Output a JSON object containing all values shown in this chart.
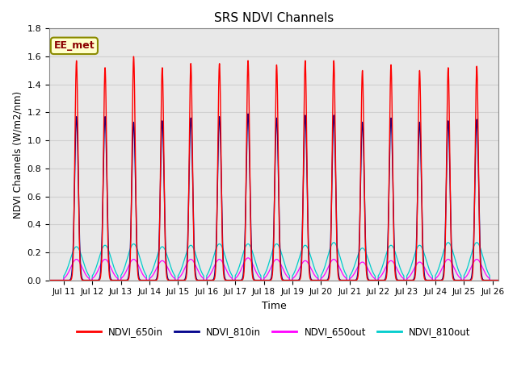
{
  "title": "SRS NDVI Channels",
  "xlabel": "Time",
  "ylabel": "NDVI Channels (W/m2/nm)",
  "ylim": [
    0,
    1.8
  ],
  "xlim_days": [
    10.5,
    26.2
  ],
  "annotation": "EE_met",
  "grid_color": "#d0d0d0",
  "bg_color": "#e8e8e8",
  "xtick_days": [
    11,
    12,
    13,
    14,
    15,
    16,
    17,
    18,
    19,
    20,
    21,
    22,
    23,
    24,
    25,
    26
  ],
  "xtick_labels": [
    "Jul 11",
    "Jul 12",
    "Jul 13",
    "Jul 14",
    "Jul 15",
    "Jul 16",
    "Jul 17",
    "Jul 18",
    "Jul 19",
    "Jul 20",
    "Jul 21",
    "Jul 22",
    "Jul 23",
    "Jul 24",
    "Jul 25",
    "Jul 26"
  ],
  "yticks": [
    0.0,
    0.2,
    0.4,
    0.6,
    0.8,
    1.0,
    1.2,
    1.4,
    1.6,
    1.8
  ],
  "legend_colors": [
    "#ff0000",
    "#00008b",
    "#ff00ff",
    "#00cccc"
  ],
  "legend_labels": [
    "NDVI_650in",
    "NDVI_810in",
    "NDVI_650out",
    "NDVI_810out"
  ],
  "peak_650in": [
    1.57,
    1.52,
    1.6,
    1.52,
    1.55,
    1.55,
    1.57,
    1.54,
    1.57,
    1.57,
    1.5,
    1.54,
    1.5,
    1.52,
    1.53
  ],
  "peak_810in": [
    1.17,
    1.17,
    1.13,
    1.14,
    1.16,
    1.17,
    1.19,
    1.16,
    1.18,
    1.18,
    1.13,
    1.16,
    1.13,
    1.14,
    1.15
  ],
  "peak_650out": [
    0.15,
    0.15,
    0.15,
    0.14,
    0.15,
    0.15,
    0.16,
    0.15,
    0.14,
    0.15,
    0.13,
    0.14,
    0.13,
    0.15,
    0.15
  ],
  "peak_810out": [
    0.24,
    0.25,
    0.26,
    0.24,
    0.25,
    0.26,
    0.26,
    0.26,
    0.25,
    0.27,
    0.23,
    0.25,
    0.25,
    0.27,
    0.27
  ],
  "n_days": 15,
  "start_day": 11
}
